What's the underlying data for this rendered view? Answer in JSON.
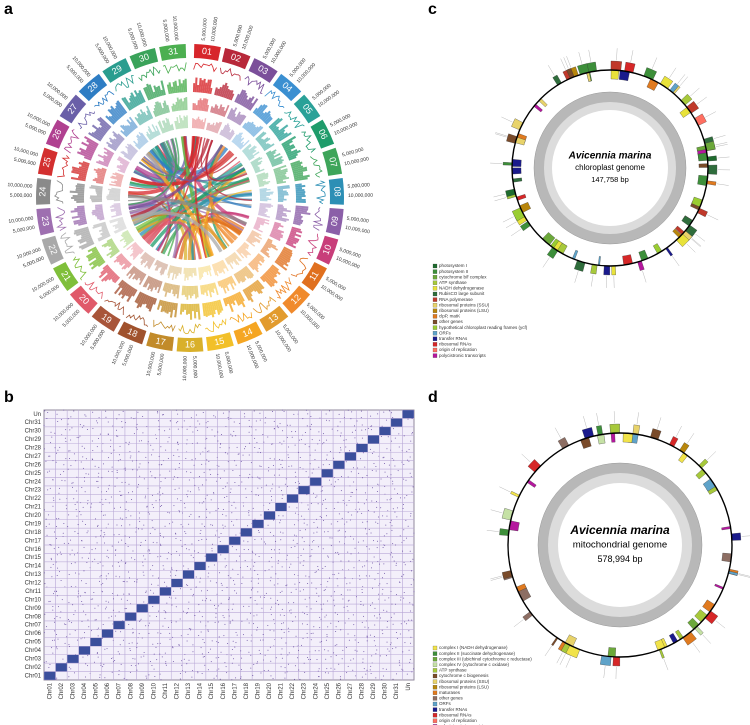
{
  "panels": {
    "a": "a",
    "b": "b",
    "c": "c",
    "d": "d"
  },
  "circos": {
    "segments": [
      {
        "label": "01",
        "color": "#d7262b"
      },
      {
        "label": "02",
        "color": "#b8283a"
      },
      {
        "label": "03",
        "color": "#7b4f9a"
      },
      {
        "label": "04",
        "color": "#3a8fd1"
      },
      {
        "label": "05",
        "color": "#2aa198"
      },
      {
        "label": "06",
        "color": "#1f9c6b"
      },
      {
        "label": "07",
        "color": "#3ea55a"
      },
      {
        "label": "08",
        "color": "#2c8fb5"
      },
      {
        "label": "09",
        "color": "#8b5fa8"
      },
      {
        "label": "10",
        "color": "#c83e7a"
      },
      {
        "label": "11",
        "color": "#e0701f"
      },
      {
        "label": "12",
        "color": "#f08a2c"
      },
      {
        "label": "13",
        "color": "#e29b2e"
      },
      {
        "label": "14",
        "color": "#f5a623"
      },
      {
        "label": "15",
        "color": "#f2c029"
      },
      {
        "label": "16",
        "color": "#d9b02a"
      },
      {
        "label": "17",
        "color": "#c28b2a"
      },
      {
        "label": "18",
        "color": "#a0522d"
      },
      {
        "label": "19",
        "color": "#a8553a"
      },
      {
        "label": "20",
        "color": "#e05a6a"
      },
      {
        "label": "21",
        "color": "#7fbf3a"
      },
      {
        "label": "22",
        "color": "#a9a9a9"
      },
      {
        "label": "23",
        "color": "#9e6fb0"
      },
      {
        "label": "24",
        "color": "#8a8a8a"
      },
      {
        "label": "25",
        "color": "#d32f2f"
      },
      {
        "label": "26",
        "color": "#b04090"
      },
      {
        "label": "27",
        "color": "#6a5fa8"
      },
      {
        "label": "28",
        "color": "#2e7dc4"
      },
      {
        "label": "29",
        "color": "#2a9d8f"
      },
      {
        "label": "30",
        "color": "#3aa35a"
      },
      {
        "label": "31",
        "color": "#4caf50"
      }
    ],
    "ticks": [
      "5,000,000",
      "10,000,000"
    ]
  },
  "dotplot": {
    "y_labels": [
      "Un",
      "Chr31",
      "Chr30",
      "Chr29",
      "Chr28",
      "Chr27",
      "Chr26",
      "Chr25",
      "Chr24",
      "Chr23",
      "Chr22",
      "Chr21",
      "Chr20",
      "Chr19",
      "Chr18",
      "Chr17",
      "Chr16",
      "Chr15",
      "Chr14",
      "Chr13",
      "Chr12",
      "Chr11",
      "Chr10",
      "Chr09",
      "Chr08",
      "Chr07",
      "Chr06",
      "Chr05",
      "Chr04",
      "Chr03",
      "Chr02",
      "Chr01"
    ],
    "x_labels": [
      "Chr01",
      "Chr02",
      "Chr03",
      "Chr04",
      "Chr05",
      "Chr06",
      "Chr07",
      "Chr08",
      "Chr09",
      "Chr10",
      "Chr11",
      "Chr12",
      "Chr13",
      "Chr14",
      "Chr15",
      "Chr16",
      "Chr17",
      "Chr18",
      "Chr19",
      "Chr20",
      "Chr21",
      "Chr22",
      "Chr23",
      "Chr24",
      "Chr25",
      "Chr26",
      "Chr27",
      "Chr28",
      "Chr29",
      "Chr30",
      "Chr31",
      "Un"
    ]
  },
  "chloroplast": {
    "species": "Avicennia marina",
    "genome": "chloroplast genome",
    "size": "147,758 bp",
    "legend": [
      {
        "label": "photosystem I",
        "color": "#1e6b2e"
      },
      {
        "label": "photosystem II",
        "color": "#3d8f3a"
      },
      {
        "label": "cytochrome b/f complex",
        "color": "#6ba83a"
      },
      {
        "label": "ATP synthase",
        "color": "#a7c93b"
      },
      {
        "label": "NADH dehydrogenase",
        "color": "#e8e23a"
      },
      {
        "label": "RubisCO large subunit",
        "color": "#2f6d3c"
      },
      {
        "label": "RNA polymerase",
        "color": "#c0392b"
      },
      {
        "label": "ribosomal proteins (SSU)",
        "color": "#e8d36a"
      },
      {
        "label": "ribosomal proteins (LSU)",
        "color": "#b8860b"
      },
      {
        "label": "clpP, matK",
        "color": "#e07a1f"
      },
      {
        "label": "other genes",
        "color": "#7a4b2a"
      },
      {
        "label": "hypothetical chloroplast reading frames (ycf)",
        "color": "#9acd32"
      },
      {
        "label": "ORFs",
        "color": "#5fa3c9"
      },
      {
        "label": "transfer RNAs",
        "color": "#1a1a8c"
      },
      {
        "label": "ribosomal RNAs",
        "color": "#d62728"
      },
      {
        "label": "origin of replication",
        "color": "#ff6f61"
      },
      {
        "label": "polycistronic transcripts",
        "color": "#b5179e"
      }
    ]
  },
  "mitochondrion": {
    "species": "Avicennia marina",
    "genome": "mitochondrial genome",
    "size": "578,994 bp",
    "legend": [
      {
        "label": "complex I (NADH dehydrogenase)",
        "color": "#f1e34a"
      },
      {
        "label": "complex II (succinate dehydrogenase)",
        "color": "#3d8f3a"
      },
      {
        "label": "complex III (ubichinol cytochrome c reductase)",
        "color": "#6ba83a"
      },
      {
        "label": "complex IV (cytochrome c oxidase)",
        "color": "#c5e1a5"
      },
      {
        "label": "ATP synthase",
        "color": "#a7c93b"
      },
      {
        "label": "cytochrome c biogenesis",
        "color": "#7a4b2a"
      },
      {
        "label": "ribosomal proteins (SSU)",
        "color": "#e8d36a"
      },
      {
        "label": "ribosomal proteins (LSU)",
        "color": "#b8860b"
      },
      {
        "label": "maturases",
        "color": "#e07a1f"
      },
      {
        "label": "other genes",
        "color": "#8d6e63"
      },
      {
        "label": "ORFs",
        "color": "#5fa3c9"
      },
      {
        "label": "transfer RNAs",
        "color": "#1a1a8c"
      },
      {
        "label": "ribosomal RNAs",
        "color": "#d62728"
      },
      {
        "label": "origin of replication",
        "color": "#ff6f61"
      },
      {
        "label": "polycistronic transcripts",
        "color": "#b5179e"
      }
    ]
  }
}
